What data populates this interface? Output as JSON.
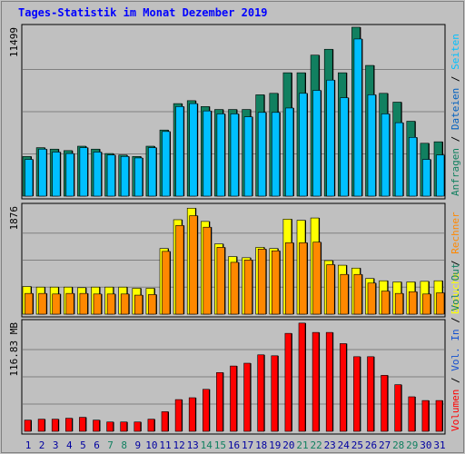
{
  "title": "Tages-Statistik im Monat Dezember 2019",
  "colors": {
    "background": "#c0c0c0",
    "frame": "#808080",
    "title": "#0000ff",
    "grid": "#808080",
    "hits": "#118060",
    "files": "#00c0ff",
    "pages": "#00d8d8",
    "visits": "#ffff00",
    "sites": "#ff8800",
    "kbytes": "#ff0000",
    "volin": "#1050d0",
    "volout": "#118060",
    "weekday": "#0000a0",
    "weekend": "#118060",
    "separator": "#000000"
  },
  "chart_data": [
    {
      "type": "bar",
      "panel": "top",
      "ymax_label": "11499",
      "ylim": [
        0,
        11499
      ],
      "legend": [
        {
          "name": "Anfragen",
          "color": "#118060"
        },
        {
          "name": "/",
          "color": "#000000"
        },
        {
          "name": "Dateien",
          "color": "#0060c0"
        },
        {
          "name": "/",
          "color": "#000000"
        },
        {
          "name": "Seiten",
          "color": "#00c0ff"
        }
      ],
      "categories": [
        "1",
        "2",
        "3",
        "4",
        "5",
        "6",
        "7",
        "8",
        "9",
        "10",
        "11",
        "12",
        "13",
        "14",
        "15",
        "16",
        "17",
        "18",
        "19",
        "20",
        "21",
        "22",
        "23",
        "24",
        "25",
        "26",
        "27",
        "28",
        "29",
        "30",
        "31"
      ],
      "series": [
        {
          "name": "Anfragen",
          "values": [
            2700,
            3300,
            3200,
            3100,
            3400,
            3200,
            2900,
            2800,
            2700,
            3400,
            4500,
            6300,
            6500,
            6100,
            5900,
            5900,
            5900,
            6900,
            7000,
            8400,
            8400,
            9600,
            10000,
            8400,
            11500,
            8900,
            7000,
            6400,
            5100,
            3600,
            3700
          ]
        },
        {
          "name": "Dateien",
          "values": [
            2500,
            3200,
            3000,
            2900,
            3300,
            3000,
            2800,
            2700,
            2600,
            3300,
            4400,
            6100,
            6300,
            5800,
            5600,
            5600,
            5400,
            5700,
            5700,
            6000,
            7000,
            7200,
            7900,
            6700,
            10700,
            6900,
            5600,
            5000,
            4000,
            2500,
            2800
          ]
        }
      ]
    },
    {
      "type": "bar",
      "panel": "middle",
      "ymax_label": "1876",
      "ylim": [
        0,
        1876
      ],
      "legend": [
        {
          "name": "Besuche",
          "color": "#ffff00"
        },
        {
          "name": "/",
          "color": "#000000"
        },
        {
          "name": "Rechner",
          "color": "#ff8800"
        }
      ],
      "categories": [
        "1",
        "2",
        "3",
        "4",
        "5",
        "6",
        "7",
        "8",
        "9",
        "10",
        "11",
        "12",
        "13",
        "14",
        "15",
        "16",
        "17",
        "18",
        "19",
        "20",
        "21",
        "22",
        "23",
        "24",
        "25",
        "26",
        "27",
        "28",
        "29",
        "30",
        "31"
      ],
      "series": [
        {
          "name": "Besuche",
          "values": [
            480,
            470,
            470,
            470,
            460,
            470,
            470,
            470,
            450,
            450,
            1140,
            1640,
            1840,
            1610,
            1220,
            1000,
            980,
            1160,
            1140,
            1650,
            1630,
            1670,
            930,
            850,
            800,
            620,
            580,
            560,
            560,
            570,
            580
          ]
        },
        {
          "name": "Rechner",
          "values": [
            360,
            360,
            350,
            360,
            360,
            350,
            350,
            350,
            330,
            340,
            1090,
            1540,
            1710,
            1510,
            1160,
            900,
            940,
            1130,
            1100,
            1240,
            1240,
            1250,
            860,
            690,
            690,
            540,
            400,
            360,
            390,
            350,
            370
          ]
        }
      ]
    },
    {
      "type": "bar",
      "panel": "bottom",
      "ymax_label": "116.83 MB",
      "ylim": [
        0,
        116.83
      ],
      "legend": [
        {
          "name": "Volumen",
          "color": "#ff0000"
        },
        {
          "name": "/",
          "color": "#000000"
        },
        {
          "name": "Vol. In",
          "color": "#1050d0"
        },
        {
          "name": "/",
          "color": "#000000"
        },
        {
          "name": "Vol. Out",
          "color": "#118060"
        }
      ],
      "categories": [
        "1",
        "2",
        "3",
        "4",
        "5",
        "6",
        "7",
        "8",
        "9",
        "10",
        "11",
        "12",
        "13",
        "14",
        "15",
        "16",
        "17",
        "18",
        "19",
        "20",
        "21",
        "22",
        "23",
        "24",
        "25",
        "26",
        "27",
        "28",
        "29",
        "30",
        "31"
      ],
      "series": [
        {
          "name": "Volumen",
          "values": [
            12,
            13,
            13,
            14,
            15,
            12,
            10,
            10,
            10,
            13,
            21,
            34,
            36,
            45,
            63,
            70,
            73,
            82,
            81,
            105,
            116,
            106,
            106,
            94,
            80,
            80,
            60,
            50,
            37,
            33,
            33
          ]
        }
      ],
      "weekend_days": [
        7,
        8,
        14,
        15,
        21,
        22,
        28,
        29
      ]
    }
  ]
}
